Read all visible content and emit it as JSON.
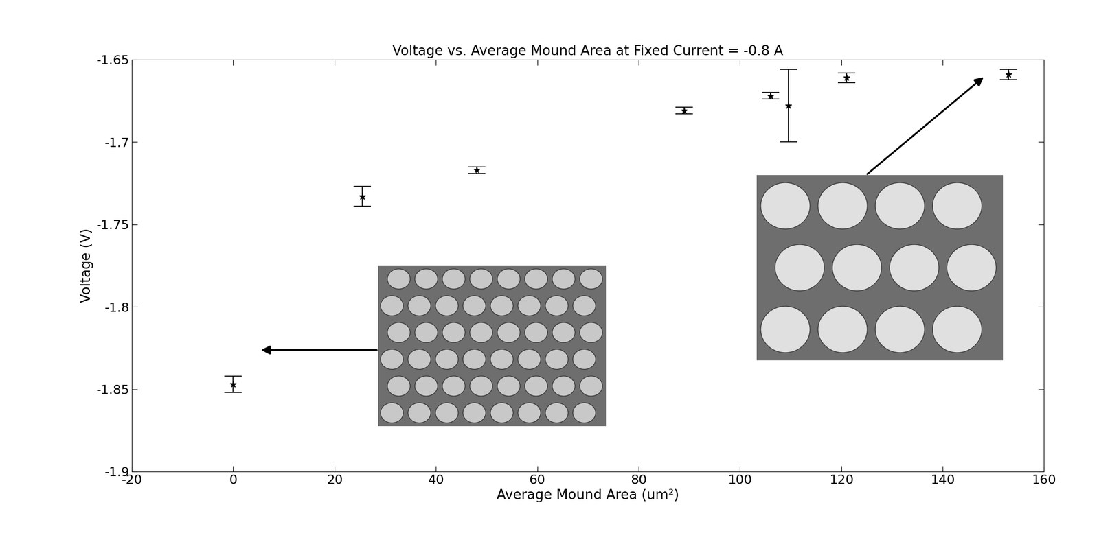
{
  "chart_data": {
    "type": "scatter",
    "title": "Voltage vs. Average Mound Area at Fixed Current = -0.8 A",
    "x_label": "Average Mound Area (um²)",
    "y_label": "Voltage (V)",
    "x": [
      0,
      25.5,
      48,
      89,
      106,
      109.5,
      121,
      153
    ],
    "values": [
      -1.847,
      -1.733,
      -1.717,
      -1.681,
      -1.672,
      -1.678,
      -1.661,
      -1.659
    ],
    "error": [
      0.005,
      0.006,
      0.002,
      0.002,
      0.002,
      0.022,
      0.003,
      0.003
    ],
    "color": "#000000",
    "marker": "*",
    "xlim": [
      -20,
      160
    ],
    "xticks": [
      -20,
      0,
      20,
      40,
      60,
      80,
      100,
      120,
      140,
      160
    ],
    "ylim": [
      -1.9,
      -1.65
    ],
    "yticks": [
      -1.9,
      -1.85,
      -1.8,
      -1.75,
      -1.7,
      -1.65
    ],
    "grid": false
  }
}
